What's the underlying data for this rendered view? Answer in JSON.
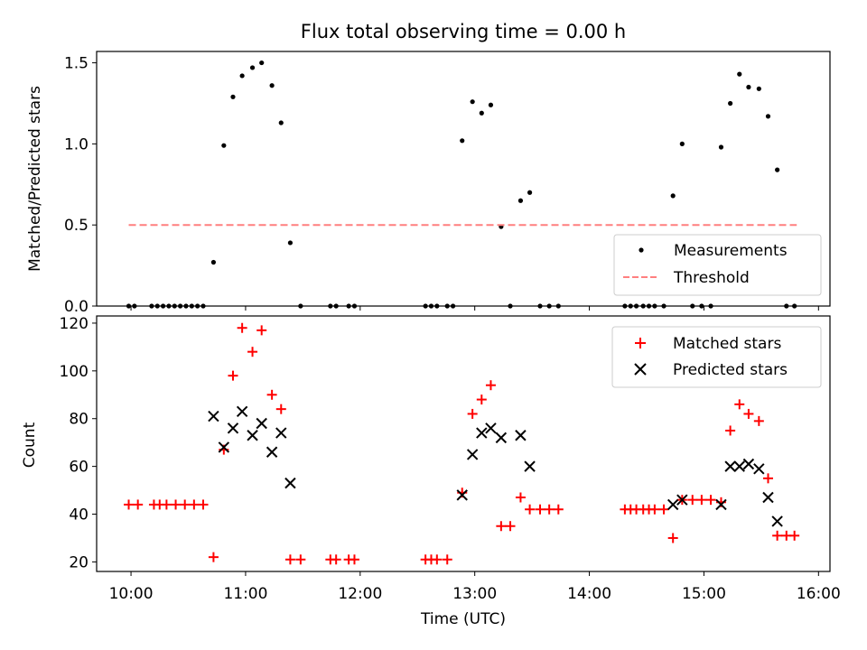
{
  "chart_data": [
    {
      "type": "scatter",
      "title": "Flux total observing time = 0.00 h",
      "xlabel": "",
      "ylabel": "Matched/Predicted stars",
      "xlim": [
        9.7,
        16.1
      ],
      "ylim": [
        0,
        1.57
      ],
      "yticks": [
        0.0,
        0.5,
        1.0,
        1.5
      ],
      "yticklabels": [
        "0.0",
        "0.5",
        "1.0",
        "1.5"
      ],
      "xticks": [
        10,
        11,
        12,
        13,
        14,
        15,
        16
      ],
      "legend": {
        "position": "lower-right"
      },
      "series": [
        {
          "name": "Measurements",
          "marker": "dot",
          "color": "#000000",
          "points": [
            [
              9.98,
              0
            ],
            [
              10.03,
              0
            ],
            [
              10.18,
              0
            ],
            [
              10.23,
              0
            ],
            [
              10.28,
              0
            ],
            [
              10.33,
              0
            ],
            [
              10.38,
              0
            ],
            [
              10.43,
              0
            ],
            [
              10.48,
              0
            ],
            [
              10.53,
              0
            ],
            [
              10.58,
              0
            ],
            [
              10.63,
              0
            ],
            [
              10.72,
              0.27
            ],
            [
              10.81,
              0.99
            ],
            [
              10.89,
              1.29
            ],
            [
              10.97,
              1.42
            ],
            [
              11.06,
              1.47
            ],
            [
              11.14,
              1.5
            ],
            [
              11.23,
              1.36
            ],
            [
              11.31,
              1.13
            ],
            [
              11.39,
              0.39
            ],
            [
              11.48,
              0
            ],
            [
              11.74,
              0
            ],
            [
              11.79,
              0
            ],
            [
              11.9,
              0
            ],
            [
              11.95,
              0
            ],
            [
              12.57,
              0
            ],
            [
              12.62,
              0
            ],
            [
              12.67,
              0
            ],
            [
              12.76,
              0
            ],
            [
              12.81,
              0
            ],
            [
              12.89,
              1.02
            ],
            [
              12.98,
              1.26
            ],
            [
              13.06,
              1.19
            ],
            [
              13.14,
              1.24
            ],
            [
              13.23,
              0.49
            ],
            [
              13.31,
              0
            ],
            [
              13.4,
              0.65
            ],
            [
              13.48,
              0.7
            ],
            [
              13.57,
              0
            ],
            [
              13.65,
              0
            ],
            [
              13.73,
              0
            ],
            [
              14.31,
              0
            ],
            [
              14.36,
              0
            ],
            [
              14.41,
              0
            ],
            [
              14.47,
              0
            ],
            [
              14.52,
              0
            ],
            [
              14.57,
              0
            ],
            [
              14.65,
              0
            ],
            [
              14.73,
              0.68
            ],
            [
              14.81,
              1.0
            ],
            [
              14.9,
              0
            ],
            [
              14.98,
              0
            ],
            [
              15.06,
              0
            ],
            [
              15.15,
              0.98
            ],
            [
              15.23,
              1.25
            ],
            [
              15.31,
              1.43
            ],
            [
              15.39,
              1.35
            ],
            [
              15.48,
              1.34
            ],
            [
              15.56,
              1.17
            ],
            [
              15.64,
              0.84
            ],
            [
              15.72,
              0
            ],
            [
              15.79,
              0
            ]
          ]
        },
        {
          "name": "Threshold",
          "style": "dashed",
          "color": "#ff7f7f",
          "x": [
            9.98,
            15.81
          ],
          "y": [
            0.5,
            0.5
          ]
        }
      ]
    },
    {
      "type": "scatter",
      "title": "",
      "xlabel": "Time (UTC)",
      "ylabel": "Count",
      "xlim": [
        9.7,
        16.1
      ],
      "ylim": [
        16,
        123
      ],
      "yticks": [
        20,
        40,
        60,
        80,
        100,
        120
      ],
      "yticklabels": [
        "20",
        "40",
        "60",
        "80",
        "100",
        "120"
      ],
      "xticks": [
        10,
        11,
        12,
        13,
        14,
        15,
        16
      ],
      "xticklabels": [
        "10:00",
        "11:00",
        "12:00",
        "13:00",
        "14:00",
        "15:00",
        "16:00"
      ],
      "legend": {
        "position": "top-right"
      },
      "series": [
        {
          "name": "Matched stars",
          "marker": "plus",
          "color": "#ff0000",
          "points": [
            [
              9.98,
              44
            ],
            [
              10.06,
              44
            ],
            [
              10.2,
              44
            ],
            [
              10.25,
              44
            ],
            [
              10.31,
              44
            ],
            [
              10.39,
              44
            ],
            [
              10.47,
              44
            ],
            [
              10.55,
              44
            ],
            [
              10.63,
              44
            ],
            [
              10.72,
              22
            ],
            [
              10.81,
              67
            ],
            [
              10.89,
              98
            ],
            [
              10.97,
              118
            ],
            [
              11.06,
              108
            ],
            [
              11.14,
              117
            ],
            [
              11.23,
              90
            ],
            [
              11.31,
              84
            ],
            [
              11.39,
              21
            ],
            [
              11.48,
              21
            ],
            [
              11.74,
              21
            ],
            [
              11.79,
              21
            ],
            [
              11.9,
              21
            ],
            [
              11.95,
              21
            ],
            [
              12.57,
              21
            ],
            [
              12.62,
              21
            ],
            [
              12.67,
              21
            ],
            [
              12.76,
              21
            ],
            [
              12.89,
              49
            ],
            [
              12.98,
              82
            ],
            [
              13.06,
              88
            ],
            [
              13.14,
              94
            ],
            [
              13.23,
              35
            ],
            [
              13.31,
              35
            ],
            [
              13.4,
              47
            ],
            [
              13.48,
              42
            ],
            [
              13.57,
              42
            ],
            [
              13.65,
              42
            ],
            [
              13.73,
              42
            ],
            [
              14.31,
              42
            ],
            [
              14.36,
              42
            ],
            [
              14.41,
              42
            ],
            [
              14.47,
              42
            ],
            [
              14.52,
              42
            ],
            [
              14.57,
              42
            ],
            [
              14.65,
              42
            ],
            [
              14.73,
              30
            ],
            [
              14.81,
              46
            ],
            [
              14.9,
              46
            ],
            [
              14.98,
              46
            ],
            [
              15.06,
              46
            ],
            [
              15.15,
              45
            ],
            [
              15.23,
              75
            ],
            [
              15.31,
              86
            ],
            [
              15.39,
              82
            ],
            [
              15.48,
              79
            ],
            [
              15.56,
              55
            ],
            [
              15.64,
              31
            ],
            [
              15.72,
              31
            ],
            [
              15.79,
              31
            ]
          ]
        },
        {
          "name": "Predicted stars",
          "marker": "x",
          "color": "#000000",
          "points": [
            [
              10.72,
              81
            ],
            [
              10.81,
              68
            ],
            [
              10.89,
              76
            ],
            [
              10.97,
              83
            ],
            [
              11.06,
              73
            ],
            [
              11.14,
              78
            ],
            [
              11.23,
              66
            ],
            [
              11.31,
              74
            ],
            [
              11.39,
              53
            ],
            [
              12.89,
              48
            ],
            [
              12.98,
              65
            ],
            [
              13.06,
              74
            ],
            [
              13.14,
              76
            ],
            [
              13.23,
              72
            ],
            [
              13.4,
              73
            ],
            [
              13.48,
              60
            ],
            [
              14.73,
              44
            ],
            [
              14.81,
              46
            ],
            [
              15.15,
              44
            ],
            [
              15.23,
              60
            ],
            [
              15.31,
              60
            ],
            [
              15.39,
              61
            ],
            [
              15.48,
              59
            ],
            [
              15.56,
              47
            ],
            [
              15.64,
              37
            ]
          ]
        }
      ]
    }
  ]
}
